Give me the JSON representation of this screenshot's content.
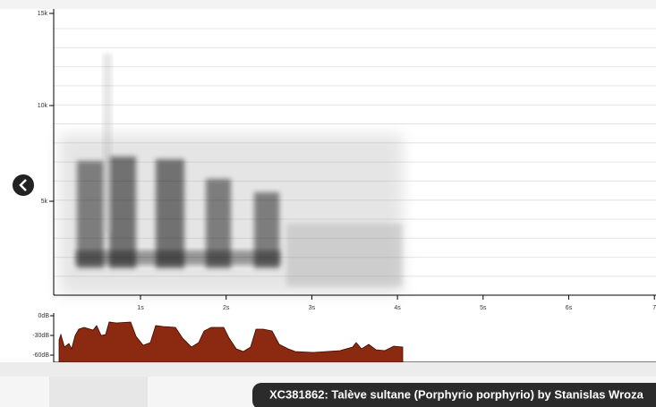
{
  "spectrogram": {
    "frequency_labels": [
      "15k",
      "10k",
      "5k"
    ],
    "time_labels": [
      "1s",
      "2s",
      "3s",
      "4s",
      "5s",
      "6s",
      "7"
    ]
  },
  "level_panel": {
    "level_labels": [
      "0dB",
      "-30dB",
      "-60dB"
    ]
  },
  "caption": "XC381862: Talève sultane (Porphyrio porphyrio) by Stanislas Wroza"
}
